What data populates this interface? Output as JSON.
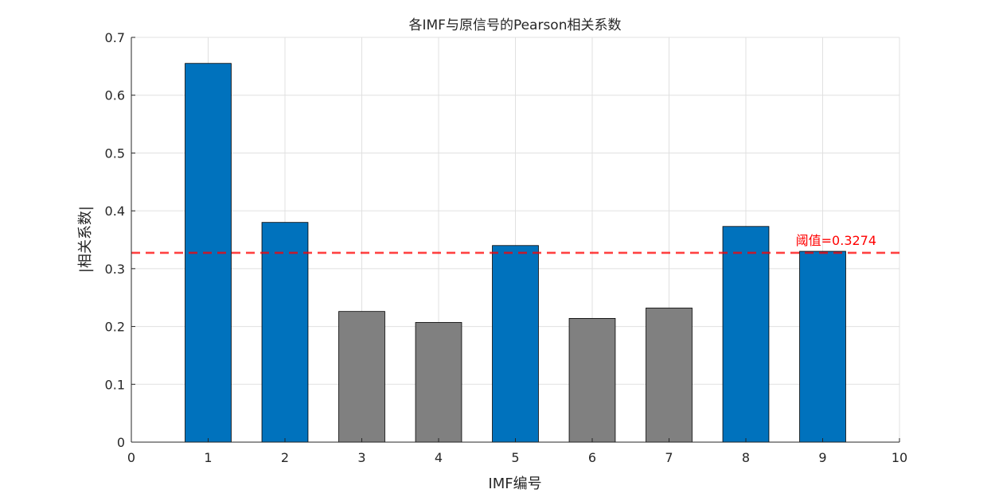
{
  "chart_data": {
    "type": "bar",
    "title": "各IMF与原信号的Pearson相关系数",
    "xlabel": "IMF编号",
    "ylabel": "|相关系数|",
    "categories": [
      1,
      2,
      3,
      4,
      5,
      6,
      7,
      8,
      9
    ],
    "values": [
      0.655,
      0.38,
      0.226,
      0.207,
      0.34,
      0.214,
      0.232,
      0.373,
      0.33
    ],
    "selected": [
      true,
      true,
      false,
      false,
      true,
      false,
      false,
      true,
      true
    ],
    "xlim": [
      0,
      10
    ],
    "ylim": [
      0,
      0.7
    ],
    "xticks": [
      "0",
      "1",
      "2",
      "3",
      "4",
      "5",
      "6",
      "7",
      "8",
      "9",
      "10"
    ],
    "yticks": [
      "0",
      "0.1",
      "0.2",
      "0.3",
      "0.4",
      "0.5",
      "0.6",
      "0.7"
    ],
    "grid": true,
    "threshold": {
      "value": 0.3274,
      "label": "阈值=0.3274",
      "color": "#ff0000",
      "style": "dashed"
    },
    "colors": {
      "selected": "#0072bd",
      "unselected": "#808080",
      "grid": "#e0e0e0",
      "axis": "#262626"
    }
  }
}
